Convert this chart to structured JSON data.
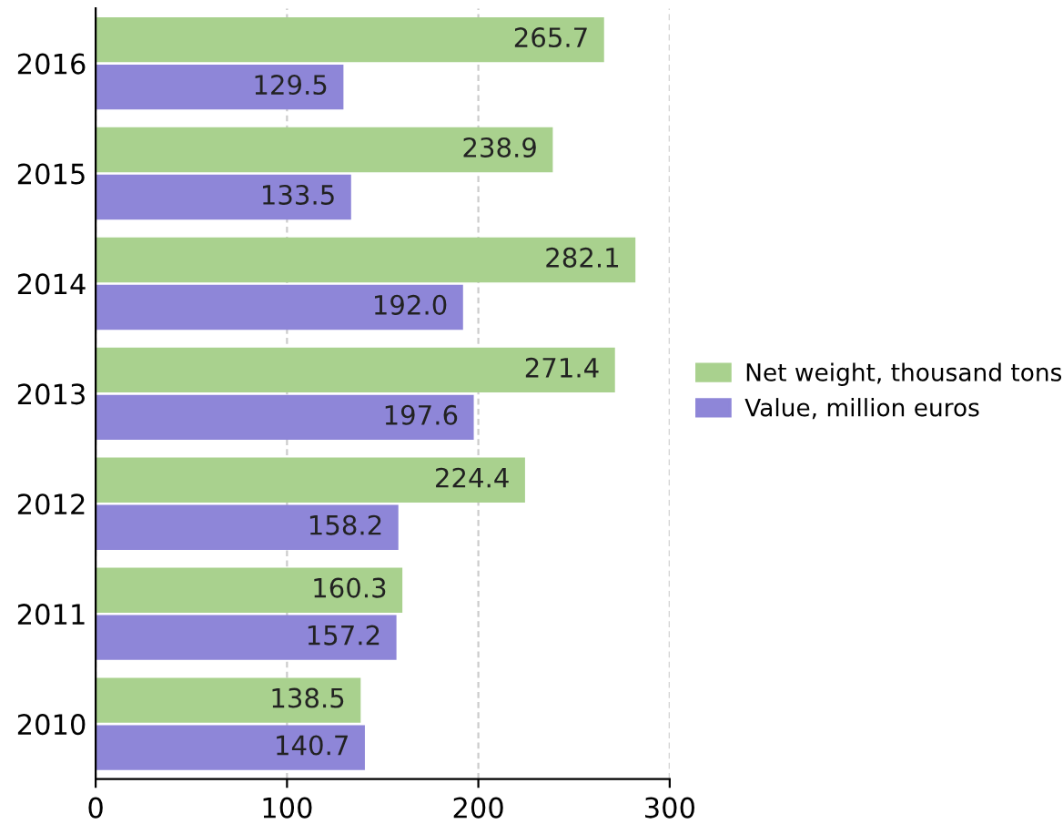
{
  "chart_data": {
    "type": "bar",
    "orientation": "horizontal",
    "categories": [
      "2016",
      "2015",
      "2014",
      "2013",
      "2012",
      "2011",
      "2010"
    ],
    "series": [
      {
        "name": "Net weight, thousand tons",
        "color": "#a9d18e",
        "values": [
          265.7,
          238.9,
          282.1,
          271.4,
          224.4,
          160.3,
          138.5
        ],
        "value_labels": [
          "265.7",
          "238.9",
          "282.1",
          "271.4",
          "224.4",
          "160.3",
          "138.5"
        ]
      },
      {
        "name": "Value, million euros",
        "color": "#8e86d8",
        "values": [
          129.5,
          133.5,
          192.0,
          197.6,
          158.2,
          157.2,
          140.7
        ],
        "value_labels": [
          "129.5",
          "133.5",
          "192.0",
          "197.6",
          "158.2",
          "157.2",
          "140.7"
        ]
      }
    ],
    "xlim": [
      0,
      300
    ],
    "xticks": [
      0,
      100,
      200,
      300
    ],
    "grid": "x",
    "legend": "right"
  }
}
